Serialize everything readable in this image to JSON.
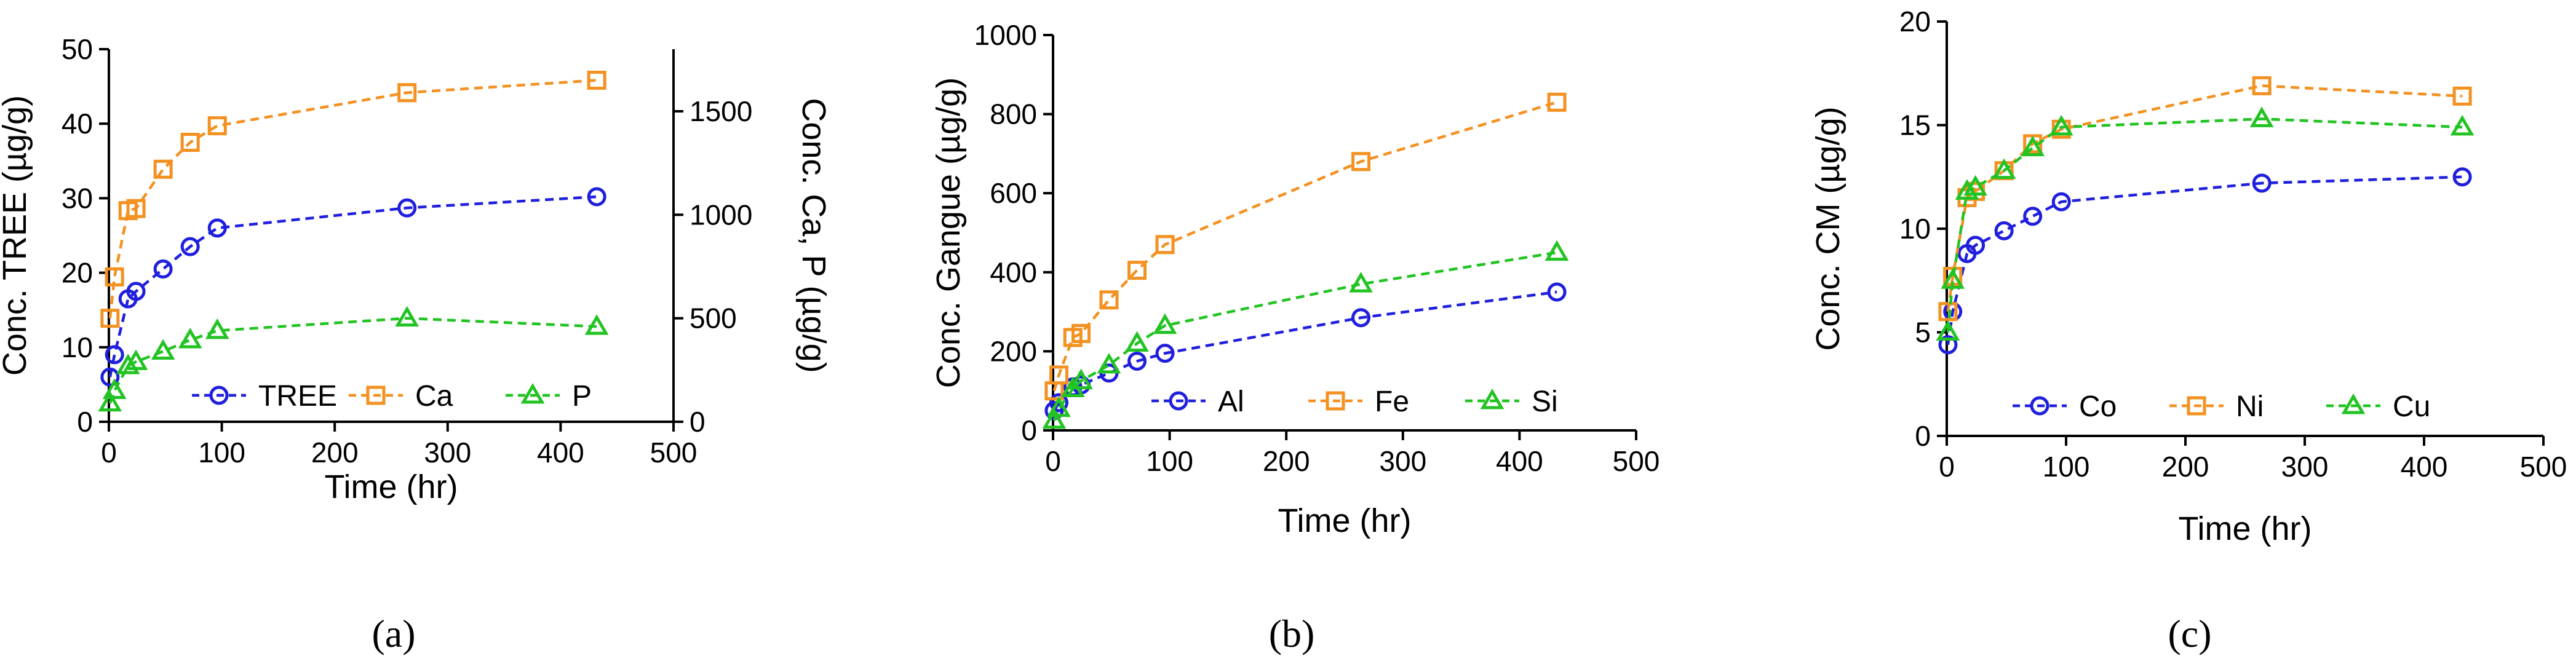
{
  "panel_labels": [
    "(a)",
    "(b)",
    "(c)"
  ],
  "colors": {
    "blue": "#1f1fdd",
    "orange": "#f39121",
    "green": "#22c322"
  },
  "chart_data": [
    {
      "type": "line",
      "id": "a",
      "panel_label": "(a)",
      "xlabel": "Time (hr)",
      "ylabel": "Conc. TREE (µg/g)",
      "y2label": "Conc. Ca, P (µg/g)",
      "xlim": [
        0,
        500
      ],
      "xticks": [
        0,
        100,
        200,
        300,
        400,
        500
      ],
      "ylim": [
        0,
        50
      ],
      "yticks": [
        0,
        10,
        20,
        30,
        40,
        50
      ],
      "y2lim": [
        0,
        1800
      ],
      "y2ticks": [
        0,
        500,
        1000,
        1500
      ],
      "legend_position": "bottom",
      "series": [
        {
          "name": "TREE",
          "axis": "left",
          "color": "#1f1fdd",
          "marker": "circle",
          "x": [
            1,
            5,
            17,
            24,
            48,
            72,
            96,
            264,
            432
          ],
          "y": [
            6,
            9,
            16.5,
            17.5,
            20.5,
            23.5,
            26,
            28.7,
            30.2
          ]
        },
        {
          "name": "Ca",
          "axis": "right",
          "color": "#f39121",
          "marker": "square",
          "x": [
            1,
            5,
            17,
            24,
            48,
            72,
            96,
            264,
            432
          ],
          "y": [
            500,
            700,
            1020,
            1030,
            1220,
            1350,
            1430,
            1590,
            1650
          ]
        },
        {
          "name": "P",
          "axis": "right",
          "color": "#22c322",
          "marker": "triangle",
          "x": [
            1,
            5,
            17,
            24,
            48,
            72,
            96,
            264,
            432
          ],
          "y": [
            90,
            150,
            270,
            290,
            340,
            395,
            440,
            500,
            460
          ]
        }
      ]
    },
    {
      "type": "line",
      "id": "b",
      "panel_label": "(b)",
      "xlabel": "Time (hr)",
      "ylabel": "Conc. Gangue (µg/g)",
      "xlim": [
        0,
        500
      ],
      "xticks": [
        0,
        100,
        200,
        300,
        400,
        500
      ],
      "ylim": [
        0,
        1000
      ],
      "yticks": [
        0,
        200,
        400,
        600,
        800,
        1000
      ],
      "legend_position": "bottom",
      "series": [
        {
          "name": "Al",
          "color": "#1f1fdd",
          "marker": "circle",
          "x": [
            1,
            5,
            17,
            24,
            48,
            72,
            96,
            264,
            432
          ],
          "y": [
            50,
            70,
            110,
            115,
            145,
            175,
            195,
            285,
            350
          ]
        },
        {
          "name": "Fe",
          "color": "#f39121",
          "marker": "square",
          "x": [
            1,
            5,
            17,
            24,
            48,
            72,
            96,
            264,
            432
          ],
          "y": [
            100,
            140,
            235,
            245,
            330,
            405,
            470,
            680,
            830
          ]
        },
        {
          "name": "Si",
          "color": "#22c322",
          "marker": "triangle",
          "x": [
            1,
            5,
            17,
            24,
            48,
            72,
            96,
            264,
            432
          ],
          "y": [
            25,
            55,
            105,
            125,
            165,
            220,
            265,
            370,
            450
          ]
        }
      ]
    },
    {
      "type": "line",
      "id": "c",
      "panel_label": "(c)",
      "xlabel": "Time (hr)",
      "ylabel": "Conc. CM (µg/g)",
      "xlim": [
        0,
        500
      ],
      "xticks": [
        0,
        100,
        200,
        300,
        400,
        500
      ],
      "ylim": [
        0,
        20
      ],
      "yticks": [
        0,
        5,
        10,
        15,
        20
      ],
      "legend_position": "bottom",
      "series": [
        {
          "name": "Co",
          "color": "#1f1fdd",
          "marker": "circle",
          "x": [
            1,
            5,
            17,
            24,
            48,
            72,
            96,
            264,
            432
          ],
          "y": [
            4.4,
            6.0,
            8.8,
            9.2,
            9.9,
            10.6,
            11.3,
            12.2,
            12.5
          ]
        },
        {
          "name": "Ni",
          "color": "#f39121",
          "marker": "square",
          "x": [
            1,
            5,
            17,
            24,
            48,
            72,
            96,
            264,
            432
          ],
          "y": [
            6.0,
            7.7,
            11.5,
            11.8,
            12.8,
            14.1,
            14.8,
            16.9,
            16.4
          ]
        },
        {
          "name": "Cu",
          "color": "#22c322",
          "marker": "triangle",
          "x": [
            1,
            5,
            17,
            24,
            48,
            72,
            96,
            264,
            432
          ],
          "y": [
            5.0,
            7.5,
            11.8,
            12.0,
            12.8,
            13.9,
            14.9,
            15.3,
            14.9
          ]
        }
      ]
    }
  ]
}
